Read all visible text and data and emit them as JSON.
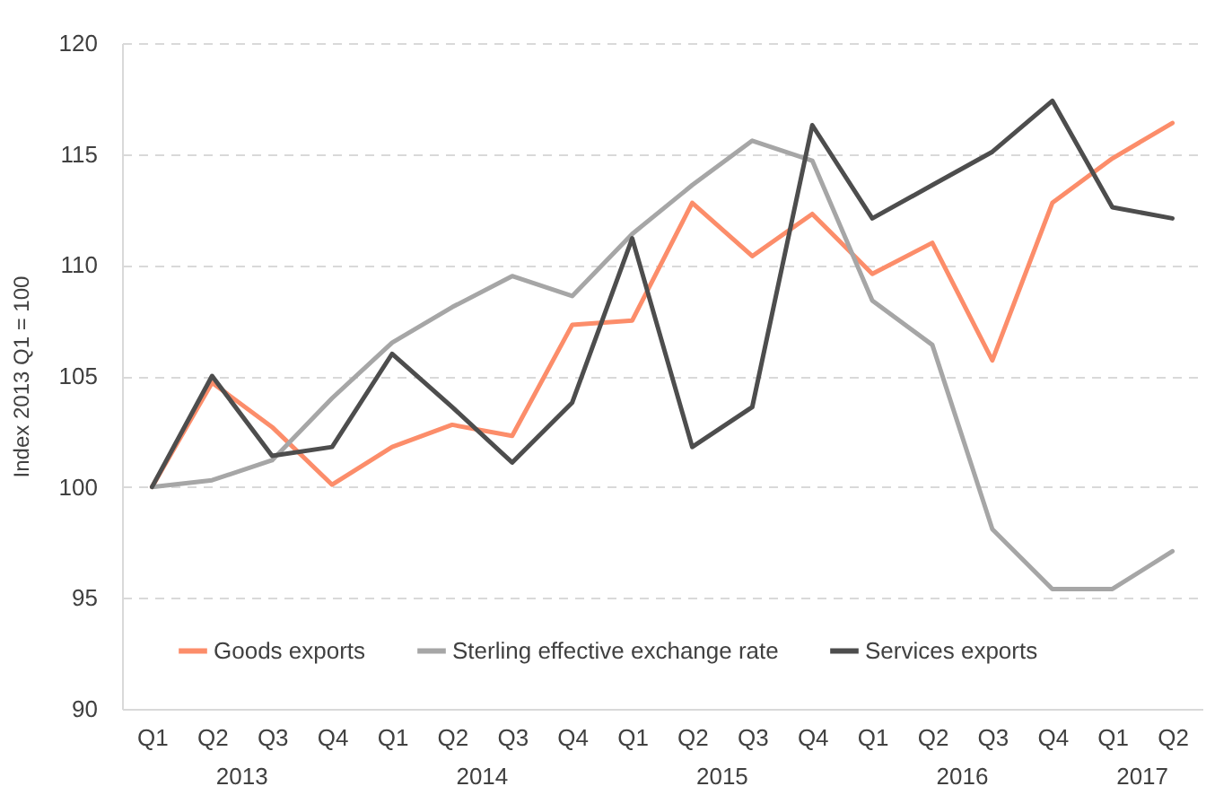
{
  "chart_data": {
    "type": "line",
    "ylabel": "Index 2013 Q1 = 100",
    "categories": [
      "Q1",
      "Q2",
      "Q3",
      "Q4",
      "Q1",
      "Q2",
      "Q3",
      "Q4",
      "Q1",
      "Q2",
      "Q3",
      "Q4",
      "Q1",
      "Q2",
      "Q3",
      "Q4",
      "Q1",
      "Q2"
    ],
    "annotations": [
      "2013",
      "2014",
      "2015",
      "2016",
      "2017"
    ],
    "series": [
      {
        "name": "Goods exports",
        "color": "#fc8d6a",
        "values": [
          100,
          104.7,
          102.7,
          100.1,
          101.8,
          102.8,
          102.3,
          107.3,
          107.5,
          112.8,
          110.4,
          112.3,
          109.6,
          111.0,
          105.7,
          112.8,
          114.8,
          116.4
        ]
      },
      {
        "name": "Sterling effective exchange rate",
        "color": "#a6a6a6",
        "values": [
          100,
          100.3,
          101.2,
          104.0,
          106.5,
          108.1,
          109.5,
          108.6,
          111.4,
          113.6,
          115.6,
          114.7,
          108.4,
          106.4,
          98.1,
          95.4,
          95.4,
          97.1
        ]
      },
      {
        "name": "Services exports",
        "color": "#4d4d4d",
        "values": [
          100,
          105.0,
          101.4,
          101.8,
          106.0,
          103.6,
          101.1,
          103.8,
          111.2,
          101.8,
          103.6,
          116.3,
          112.1,
          113.6,
          115.1,
          117.4,
          112.6,
          112.1
        ]
      }
    ],
    "ylim": [
      90,
      120
    ],
    "yticks": [
      90,
      95,
      100,
      105,
      110,
      115,
      120
    ],
    "grid": "y",
    "legend": "bottom",
    "line_style": "solid"
  }
}
